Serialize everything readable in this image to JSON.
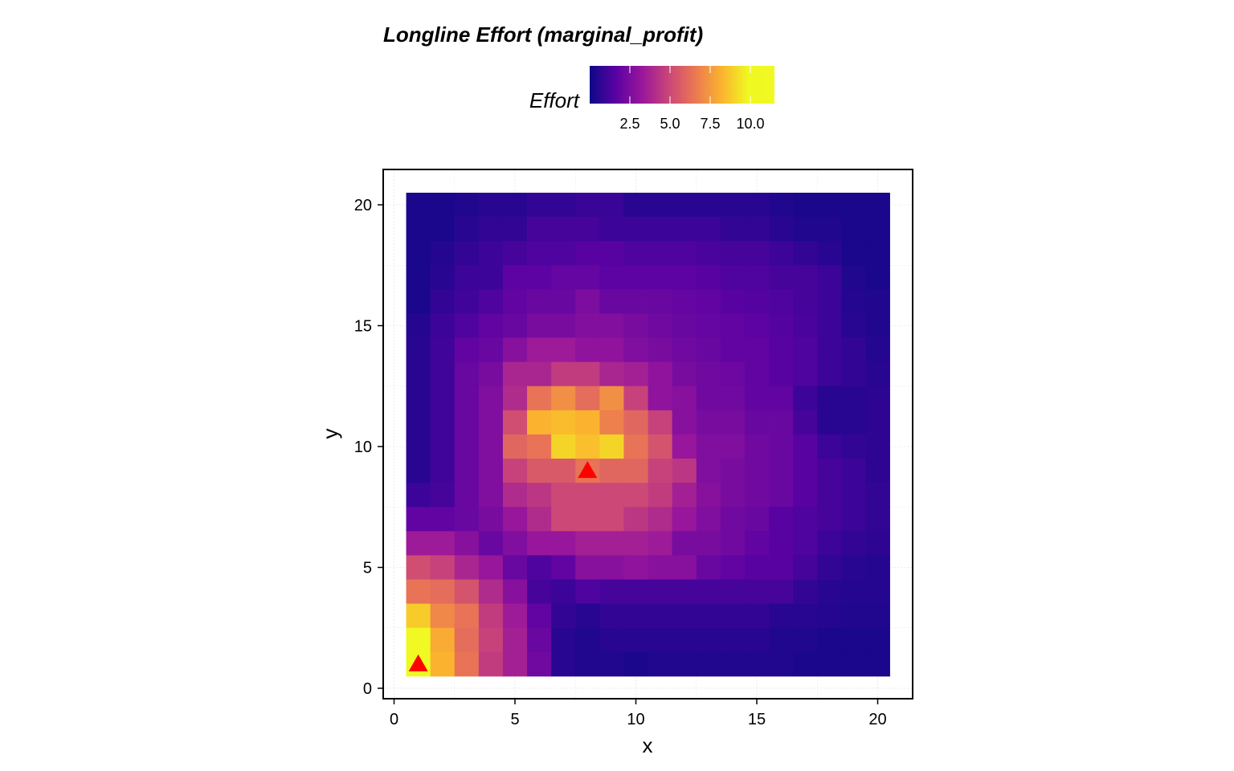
{
  "chart_data": {
    "type": "heatmap",
    "title": "Longline Effort (marginal_profit)",
    "xlabel": "x",
    "ylabel": "y",
    "xlim": [
      0,
      21
    ],
    "ylim": [
      0,
      21
    ],
    "x_ticks": [
      "0",
      "5",
      "10",
      "15",
      "20"
    ],
    "y_ticks": [
      "0",
      "5",
      "10",
      "15",
      "20"
    ],
    "grid": true,
    "legend": {
      "title": "Effort",
      "placement": "top",
      "ticks": [
        "2.5",
        "5.0",
        "7.5",
        "10.0"
      ],
      "tick_values": [
        2.5,
        5.0,
        7.5,
        10.0
      ],
      "min": 0.0,
      "max": 11.5
    },
    "colormap": "plasma",
    "cells": {
      "x_start": 1,
      "y_start": 1,
      "note_order": "rows listed from y=20 (top) down to y=1 (bottom); each row x=1..20",
      "rows": [
        [
          0.3,
          0.3,
          0.4,
          0.6,
          0.6,
          0.8,
          0.8,
          0.9,
          0.9,
          0.6,
          0.6,
          0.6,
          0.6,
          0.6,
          0.6,
          0.4,
          0.3,
          0.3,
          0.3,
          0.3
        ],
        [
          0.3,
          0.3,
          0.6,
          0.8,
          0.8,
          1.2,
          1.2,
          1.2,
          1.0,
          1.0,
          1.0,
          1.0,
          1.0,
          0.8,
          0.8,
          0.6,
          0.4,
          0.4,
          0.3,
          0.3
        ],
        [
          0.3,
          0.5,
          0.8,
          1.0,
          1.2,
          1.4,
          1.4,
          1.6,
          1.6,
          1.4,
          1.4,
          1.4,
          1.3,
          1.2,
          1.2,
          1.0,
          0.8,
          0.6,
          0.3,
          0.3
        ],
        [
          0.3,
          0.6,
          1.0,
          1.0,
          1.7,
          1.7,
          1.9,
          1.9,
          1.7,
          1.7,
          1.7,
          1.7,
          1.6,
          1.4,
          1.4,
          1.2,
          1.2,
          1.0,
          0.4,
          0.3
        ],
        [
          0.3,
          0.8,
          1.1,
          1.4,
          1.8,
          2.0,
          2.0,
          2.5,
          2.0,
          2.0,
          2.0,
          1.9,
          1.8,
          1.6,
          1.5,
          1.4,
          1.2,
          1.0,
          0.5,
          0.4
        ],
        [
          0.5,
          1.0,
          1.4,
          1.8,
          2.0,
          2.4,
          2.4,
          2.7,
          2.7,
          2.4,
          2.2,
          2.0,
          1.9,
          1.8,
          1.7,
          1.5,
          1.3,
          1.0,
          0.6,
          0.4
        ],
        [
          0.6,
          1.1,
          1.8,
          2.0,
          2.8,
          3.4,
          3.4,
          3.0,
          3.0,
          2.6,
          2.4,
          2.2,
          2.0,
          1.8,
          1.8,
          1.6,
          1.4,
          1.0,
          0.8,
          0.5
        ],
        [
          0.6,
          1.1,
          2.0,
          2.4,
          3.8,
          3.8,
          4.6,
          4.6,
          3.8,
          3.6,
          3.0,
          2.4,
          2.2,
          2.1,
          1.8,
          1.6,
          1.4,
          1.0,
          0.8,
          0.6
        ],
        [
          0.6,
          1.1,
          2.0,
          2.6,
          4.0,
          6.4,
          7.2,
          6.2,
          7.2,
          4.8,
          3.0,
          2.8,
          2.2,
          2.2,
          1.8,
          1.8,
          1.0,
          0.6,
          0.6,
          0.7
        ],
        [
          0.6,
          1.1,
          2.0,
          2.6,
          5.2,
          8.2,
          8.4,
          8.2,
          6.8,
          6.0,
          4.8,
          2.8,
          2.4,
          2.4,
          2.0,
          2.0,
          1.2,
          0.6,
          0.6,
          0.7
        ],
        [
          0.6,
          1.1,
          2.0,
          2.6,
          6.0,
          6.4,
          9.0,
          8.5,
          9.0,
          6.4,
          5.4,
          3.2,
          2.6,
          2.6,
          2.2,
          2.0,
          1.6,
          1.0,
          0.8,
          0.7
        ],
        [
          0.6,
          1.1,
          2.0,
          2.6,
          4.8,
          5.6,
          5.6,
          6.4,
          6.0,
          6.0,
          4.8,
          4.4,
          2.6,
          2.4,
          2.2,
          2.0,
          1.6,
          1.2,
          1.0,
          0.7
        ],
        [
          1.0,
          1.2,
          2.0,
          2.6,
          4.0,
          4.4,
          5.0,
          5.0,
          5.0,
          5.0,
          4.6,
          3.6,
          2.8,
          2.4,
          2.2,
          2.0,
          1.6,
          1.2,
          1.0,
          0.8
        ],
        [
          1.8,
          1.8,
          2.0,
          2.4,
          3.2,
          4.0,
          5.0,
          5.0,
          5.0,
          4.4,
          4.0,
          3.2,
          2.6,
          2.2,
          2.0,
          1.6,
          1.4,
          1.2,
          1.0,
          0.8
        ],
        [
          3.4,
          3.4,
          2.8,
          2.0,
          2.6,
          3.2,
          3.2,
          3.6,
          3.6,
          3.6,
          3.4,
          2.4,
          2.4,
          2.2,
          1.8,
          1.6,
          1.4,
          1.0,
          0.8,
          0.7
        ],
        [
          5.2,
          4.8,
          3.8,
          3.2,
          2.0,
          1.4,
          1.8,
          2.8,
          2.8,
          3.0,
          2.8,
          2.8,
          2.0,
          1.8,
          1.6,
          1.6,
          1.2,
          0.8,
          0.6,
          0.5
        ],
        [
          6.4,
          6.2,
          5.4,
          4.0,
          2.8,
          1.2,
          1.0,
          1.4,
          1.2,
          1.2,
          1.2,
          1.2,
          1.2,
          1.2,
          1.2,
          1.2,
          0.8,
          0.6,
          0.5,
          0.5
        ],
        [
          8.8,
          7.0,
          6.4,
          4.6,
          3.4,
          1.8,
          0.8,
          0.6,
          0.8,
          0.8,
          0.8,
          0.8,
          0.8,
          0.8,
          0.8,
          0.6,
          0.6,
          0.5,
          0.4,
          0.4
        ],
        [
          11.2,
          8.0,
          6.2,
          4.8,
          3.6,
          2.0,
          0.6,
          0.4,
          0.6,
          0.6,
          0.6,
          0.6,
          0.6,
          0.6,
          0.6,
          0.4,
          0.4,
          0.3,
          0.3,
          0.3
        ],
        [
          11.6,
          8.2,
          6.4,
          4.6,
          3.6,
          2.2,
          0.6,
          0.4,
          0.4,
          0.3,
          0.4,
          0.4,
          0.4,
          0.4,
          0.4,
          0.4,
          0.3,
          0.3,
          0.3,
          0.3
        ]
      ]
    },
    "markers": [
      {
        "x": 1,
        "y": 1,
        "shape": "triangle",
        "color": "#ff0000"
      },
      {
        "x": 8,
        "y": 9,
        "shape": "triangle",
        "color": "#ff0000"
      }
    ]
  }
}
